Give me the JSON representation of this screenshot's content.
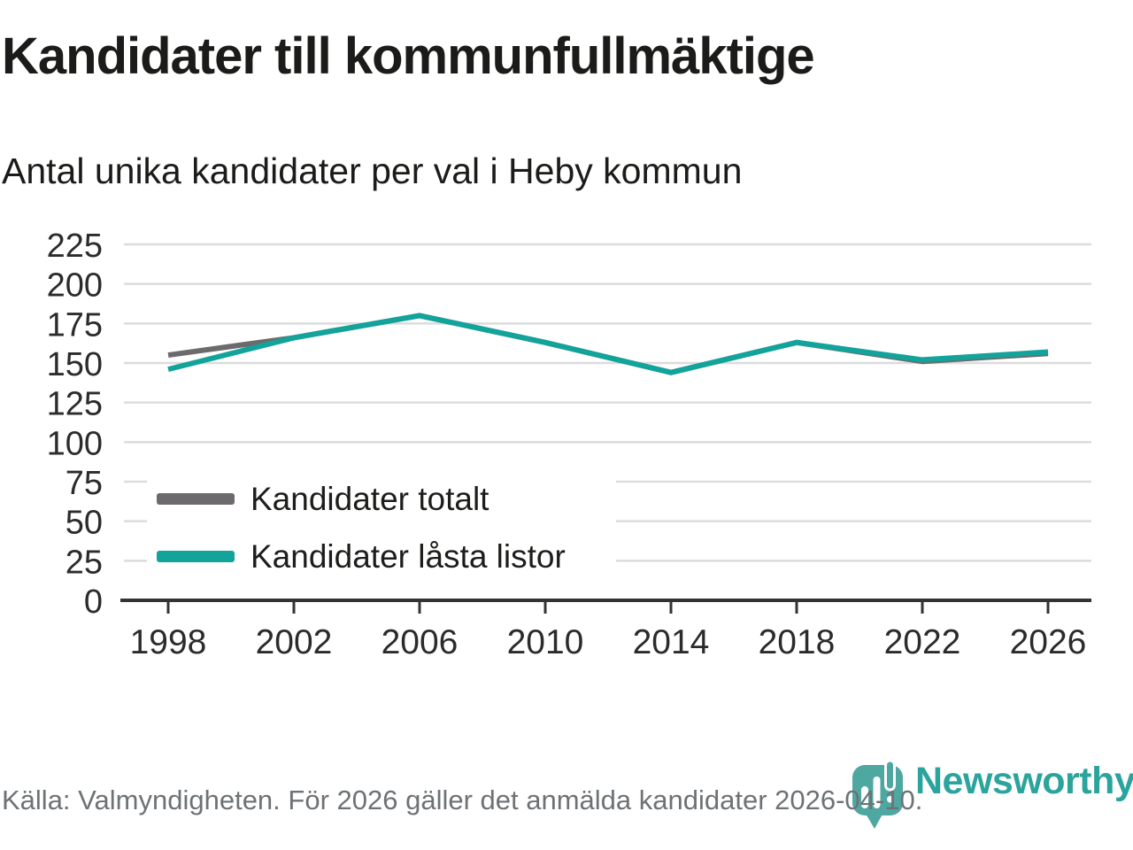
{
  "title": "Kandidater till kommunfullmäktige",
  "subtitle": "Antal unika kandidater per val i Heby kommun",
  "footer": {
    "source_text": "Källa: Valmyndigheten. För 2026 gäller det anmälda kandidater 2026-04-10."
  },
  "branding": {
    "name": "Newsworthy",
    "logo_icon": "speech-bubble-bar-chart-exclamation-icon"
  },
  "colors": {
    "total": "#6d6a6d",
    "locked": "#12a39b",
    "grid": "#dcdcdc",
    "axis": "#333333",
    "tick_label": "#2b2b2b",
    "title_text": "#1b1b19",
    "footer_text": "#6e7275",
    "brand_teal": "#2ba49d",
    "brand_bubble": "#4ea7a1"
  },
  "chart_data": {
    "type": "line",
    "title": "Kandidater till kommunfullmäktige",
    "subtitle": "Antal unika kandidater per val i Heby kommun",
    "categories": [
      1998,
      2002,
      2006,
      2010,
      2014,
      2018,
      2022,
      2026
    ],
    "series": [
      {
        "name": "Kandidater totalt",
        "color": "#6d6a6d",
        "values": [
          155,
          166,
          180,
          163,
          144,
          163,
          151,
          156
        ]
      },
      {
        "name": "Kandidater låsta listor",
        "color": "#12a39b",
        "values": [
          146,
          166,
          180,
          163,
          144,
          163,
          152,
          157
        ]
      }
    ],
    "ylim": [
      0,
      225
    ],
    "yticks": [
      0,
      25,
      50,
      75,
      100,
      125,
      150,
      175,
      200,
      225
    ],
    "grid": "horizontal",
    "legend_position": "inside-bottom-left"
  }
}
